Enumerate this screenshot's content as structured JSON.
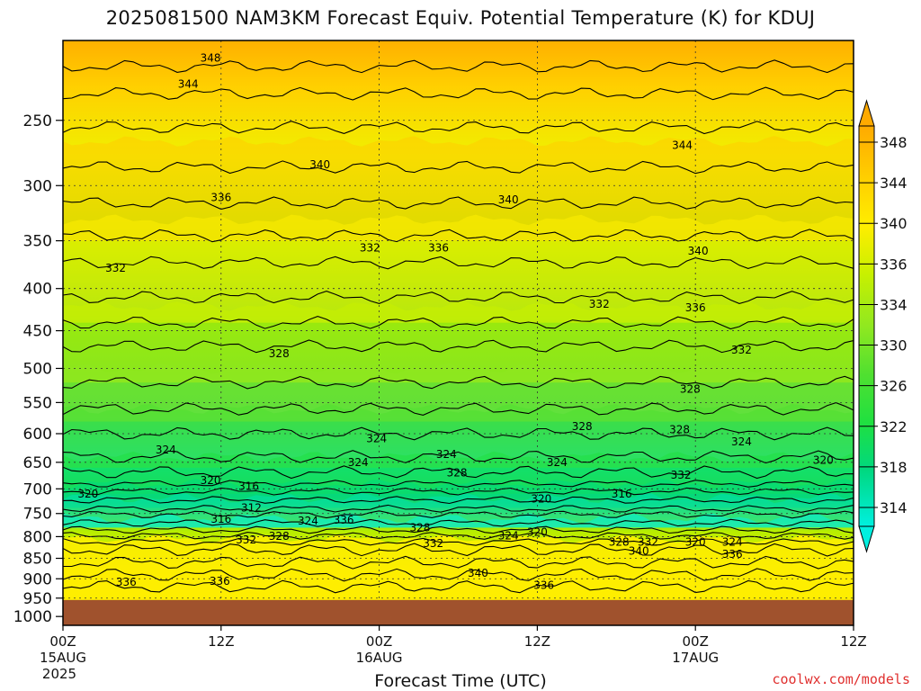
{
  "title": "2025081500 NAM3KM Forecast Equiv. Potential Temperature (K) for KDUJ",
  "x_axis_title": "Forecast Time (UTC)",
  "credit": "coolwx.com/models",
  "colors": {
    "ground": "#a0522d",
    "c314": "#00f0e0",
    "c318": "#00e0b0",
    "c322": "#00d880",
    "c326": "#20e040",
    "c330": "#50e030",
    "c334": "#90e820",
    "c338": "#c8f000",
    "c342": "#ffee00",
    "c346": "#ffcc00",
    "c348": "#ffaa00"
  },
  "chart_data": {
    "type": "heatmap",
    "variable": "Equiv. Potential Temperature (K)",
    "x_ticks": [
      {
        "label": "00Z",
        "sub": "15AUG",
        "sub2": "2025",
        "hour": 0
      },
      {
        "label": "12Z",
        "sub": "",
        "sub2": "",
        "hour": 12
      },
      {
        "label": "00Z",
        "sub": "16AUG",
        "sub2": "",
        "hour": 24
      },
      {
        "label": "12Z",
        "sub": "",
        "sub2": "",
        "hour": 36
      },
      {
        "label": "00Z",
        "sub": "17AUG",
        "sub2": "",
        "hour": 48
      },
      {
        "label": "12Z",
        "sub": "",
        "sub2": "",
        "hour": 60
      }
    ],
    "x_range_hours": [
      0,
      60
    ],
    "y_ticks": [
      250,
      300,
      350,
      400,
      450,
      500,
      550,
      600,
      650,
      700,
      750,
      800,
      850,
      900,
      950,
      1000
    ],
    "y_range_hpa": [
      200,
      1025
    ],
    "y_scale": "log-pressure",
    "surface_pressure_hpa": 955,
    "colorbar": {
      "labels": [
        "348",
        "344",
        "340",
        "336",
        "334",
        "330",
        "326",
        "322",
        "318",
        "314"
      ]
    },
    "contour_labels": [
      {
        "text": "348",
        "hour": 11.2,
        "p": 210
      },
      {
        "text": "344",
        "hour": 9.5,
        "p": 226
      },
      {
        "text": "340",
        "hour": 19.5,
        "p": 283
      },
      {
        "text": "336",
        "hour": 12,
        "p": 310
      },
      {
        "text": "332",
        "hour": 4,
        "p": 378
      },
      {
        "text": "332",
        "hour": 23.3,
        "p": 357
      },
      {
        "text": "336",
        "hour": 28.5,
        "p": 357
      },
      {
        "text": "340",
        "hour": 33.8,
        "p": 312
      },
      {
        "text": "344",
        "hour": 47,
        "p": 268
      },
      {
        "text": "340",
        "hour": 48.2,
        "p": 360
      },
      {
        "text": "332",
        "hour": 40.7,
        "p": 418
      },
      {
        "text": "336",
        "hour": 48,
        "p": 422
      },
      {
        "text": "332",
        "hour": 51.5,
        "p": 475
      },
      {
        "text": "328",
        "hour": 16.4,
        "p": 480
      },
      {
        "text": "328",
        "hour": 47.6,
        "p": 530
      },
      {
        "text": "328",
        "hour": 39.4,
        "p": 588
      },
      {
        "text": "328",
        "hour": 46.8,
        "p": 593
      },
      {
        "text": "324",
        "hour": 23.8,
        "p": 608
      },
      {
        "text": "324",
        "hour": 51.5,
        "p": 614
      },
      {
        "text": "324",
        "hour": 7.8,
        "p": 628
      },
      {
        "text": "324",
        "hour": 29.1,
        "p": 636
      },
      {
        "text": "324",
        "hour": 22.4,
        "p": 650
      },
      {
        "text": "324",
        "hour": 37.5,
        "p": 650
      },
      {
        "text": "320",
        "hour": 57.7,
        "p": 646
      },
      {
        "text": "328",
        "hour": 29.9,
        "p": 669
      },
      {
        "text": "332",
        "hour": 46.9,
        "p": 674
      },
      {
        "text": "320",
        "hour": 11.2,
        "p": 684
      },
      {
        "text": "316",
        "hour": 14.1,
        "p": 695
      },
      {
        "text": "320",
        "hour": 1.9,
        "p": 710
      },
      {
        "text": "316",
        "hour": 42.4,
        "p": 710
      },
      {
        "text": "320",
        "hour": 36.3,
        "p": 720
      },
      {
        "text": "312",
        "hour": 14.3,
        "p": 738
      },
      {
        "text": "316",
        "hour": 12,
        "p": 762
      },
      {
        "text": "324",
        "hour": 18.6,
        "p": 766
      },
      {
        "text": "336",
        "hour": 21.3,
        "p": 764
      },
      {
        "text": "328",
        "hour": 27.1,
        "p": 780
      },
      {
        "text": "320",
        "hour": 36,
        "p": 790
      },
      {
        "text": "324",
        "hour": 33.8,
        "p": 798
      },
      {
        "text": "332",
        "hour": 13.9,
        "p": 807
      },
      {
        "text": "328",
        "hour": 16.4,
        "p": 799
      },
      {
        "text": "332",
        "hour": 28.1,
        "p": 815
      },
      {
        "text": "328",
        "hour": 42.2,
        "p": 812
      },
      {
        "text": "332",
        "hour": 44.4,
        "p": 812
      },
      {
        "text": "320",
        "hour": 48,
        "p": 812
      },
      {
        "text": "324",
        "hour": 50.8,
        "p": 812
      },
      {
        "text": "340",
        "hour": 43.7,
        "p": 833
      },
      {
        "text": "336",
        "hour": 50.8,
        "p": 840
      },
      {
        "text": "340",
        "hour": 31.5,
        "p": 886
      },
      {
        "text": "336",
        "hour": 4.8,
        "p": 908
      },
      {
        "text": "336",
        "hour": 11.9,
        "p": 906
      },
      {
        "text": "336",
        "hour": 36.5,
        "p": 916
      }
    ]
  }
}
